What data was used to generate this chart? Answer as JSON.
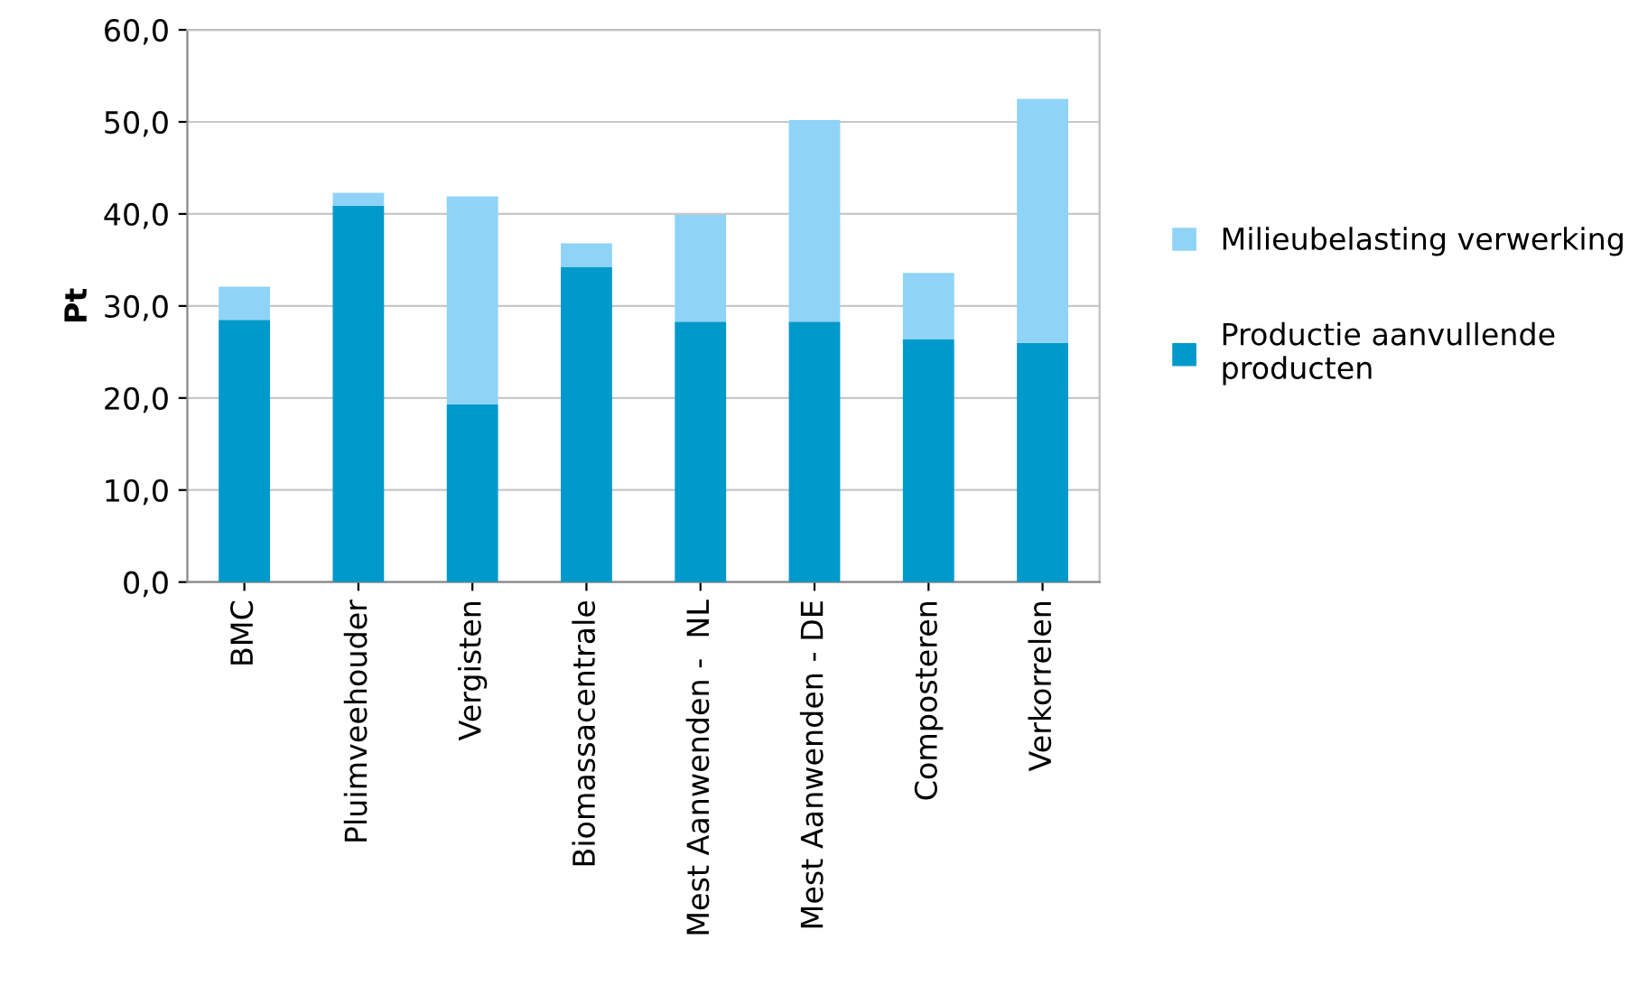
{
  "chart_data": {
    "type": "bar",
    "stacked": true,
    "ylabel": "Pt",
    "categories": [
      "BMC",
      "Pluimveehouder",
      "Vergisten",
      "Biomassacentrale",
      "Mest Aanwenden -  NL",
      "Mest Aanwenden - DE",
      "Composteren",
      "Verkorrelen"
    ],
    "series": [
      {
        "name": "Productie aanvullende producten",
        "color": "#0099cc",
        "values": [
          28.5,
          40.9,
          19.3,
          34.2,
          28.3,
          28.3,
          26.4,
          26.0
        ]
      },
      {
        "name": "Milieubelasting verwerking",
        "color": "#8fd3f7",
        "values": [
          3.6,
          1.4,
          22.6,
          2.6,
          11.6,
          21.9,
          7.2,
          26.5
        ]
      }
    ],
    "ylim": [
      0,
      60
    ],
    "yticks": [
      {
        "value": 0,
        "label": "0,0"
      },
      {
        "value": 10,
        "label": "10,0"
      },
      {
        "value": 20,
        "label": "20,0"
      },
      {
        "value": 30,
        "label": "30,0"
      },
      {
        "value": 40,
        "label": "40,0"
      },
      {
        "value": 50,
        "label": "50,0"
      },
      {
        "value": 60,
        "label": "60,0"
      }
    ],
    "grid": "y",
    "legend": "right"
  }
}
